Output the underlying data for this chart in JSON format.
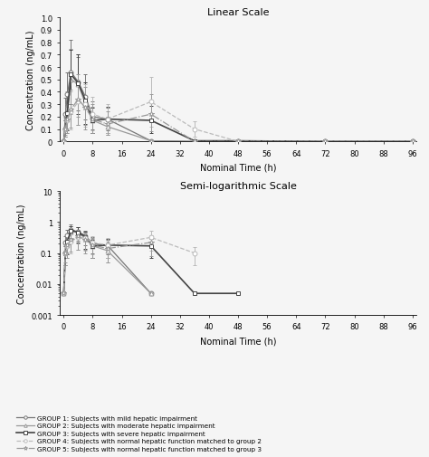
{
  "title_top": "Linear Scale",
  "title_bottom": "Semi-logarithmic Scale",
  "xlabel": "Nominal Time (h)",
  "ylabel": "Concentration (ng/mL)",
  "time_points": [
    0,
    0.5,
    1,
    2,
    4,
    6,
    8,
    12,
    24,
    36,
    48,
    72,
    96
  ],
  "groups": {
    "G1": {
      "label": "GROUP 1: Subjects with mild hepatic impairment",
      "color": "#777777",
      "linestyle": "-",
      "marker": "o",
      "markersize": 3.5,
      "linewidth": 0.9,
      "mean": [
        0.005,
        0.22,
        0.38,
        0.56,
        0.48,
        0.36,
        0.2,
        0.18,
        0.005,
        0.0,
        0.0,
        0.0,
        0.0
      ],
      "sd_lo": [
        0.005,
        0.12,
        0.2,
        0.3,
        0.25,
        0.18,
        0.1,
        0.09,
        0.005,
        0.0,
        0.0,
        0.0,
        0.0
      ],
      "sd_hi": [
        0.005,
        0.35,
        0.56,
        0.82,
        0.68,
        0.54,
        0.32,
        0.27,
        0.005,
        0.0,
        0.0,
        0.0,
        0.0
      ]
    },
    "G2": {
      "label": "GROUP 2: Subjects with moderate hepatic impairment",
      "color": "#999999",
      "linestyle": "-",
      "marker": "^",
      "markersize": 3.5,
      "linewidth": 0.9,
      "mean": [
        0.005,
        0.11,
        0.24,
        0.5,
        0.46,
        0.3,
        0.17,
        0.12,
        0.005,
        0.0,
        0.0,
        0.0,
        0.0
      ],
      "sd_lo": [
        0.005,
        0.05,
        0.1,
        0.22,
        0.2,
        0.13,
        0.07,
        0.05,
        0.005,
        0.0,
        0.0,
        0.0,
        0.0
      ],
      "sd_hi": [
        0.005,
        0.2,
        0.4,
        0.75,
        0.7,
        0.48,
        0.28,
        0.2,
        0.005,
        0.0,
        0.0,
        0.0,
        0.0
      ]
    },
    "G3": {
      "label": "GROUP 3: Subjects with severe hepatic impairment",
      "color": "#444444",
      "linestyle": "-",
      "marker": "s",
      "markersize": 3.5,
      "linewidth": 1.2,
      "mean": [
        0.005,
        0.1,
        0.23,
        0.54,
        0.47,
        0.33,
        0.17,
        0.18,
        0.17,
        0.005,
        0.005,
        0.0,
        0.0
      ],
      "sd_lo": [
        0.005,
        0.04,
        0.09,
        0.24,
        0.22,
        0.14,
        0.07,
        0.07,
        0.07,
        0.005,
        0.005,
        0.0,
        0.0
      ],
      "sd_hi": [
        0.005,
        0.17,
        0.38,
        0.74,
        0.7,
        0.48,
        0.27,
        0.28,
        0.29,
        0.005,
        0.005,
        0.0,
        0.0
      ]
    },
    "G4": {
      "label": "GROUP 4: Subjects with normal hepatic function matched to group 2",
      "color": "#bbbbbb",
      "linestyle": "--",
      "marker": "o",
      "markersize": 3.5,
      "linewidth": 0.9,
      "mean": [
        0.005,
        0.1,
        0.17,
        0.24,
        0.32,
        0.3,
        0.22,
        0.18,
        0.32,
        0.1,
        0.0,
        0.0,
        0.0
      ],
      "sd_lo": [
        0.005,
        0.04,
        0.07,
        0.1,
        0.13,
        0.12,
        0.09,
        0.07,
        0.12,
        0.04,
        0.0,
        0.0,
        0.0
      ],
      "sd_hi": [
        0.005,
        0.18,
        0.28,
        0.4,
        0.5,
        0.46,
        0.36,
        0.3,
        0.52,
        0.16,
        0.0,
        0.0,
        0.0
      ]
    },
    "G5": {
      "label": "GROUP 5: Subjects with normal hepatic function matched to group 3",
      "color": "#999999",
      "linestyle": "-.",
      "marker": "*",
      "markersize": 4,
      "linewidth": 0.9,
      "mean": [
        0.005,
        0.1,
        0.18,
        0.26,
        0.34,
        0.27,
        0.18,
        0.14,
        0.22,
        0.0,
        0.0,
        0.0,
        0.0
      ],
      "sd_lo": [
        0.005,
        0.04,
        0.07,
        0.11,
        0.13,
        0.1,
        0.07,
        0.05,
        0.08,
        0.0,
        0.0,
        0.0,
        0.0
      ],
      "sd_hi": [
        0.005,
        0.19,
        0.3,
        0.42,
        0.54,
        0.44,
        0.3,
        0.24,
        0.38,
        0.0,
        0.0,
        0.0,
        0.0
      ]
    }
  },
  "xticks": [
    0,
    8,
    16,
    24,
    32,
    40,
    48,
    56,
    64,
    72,
    80,
    88,
    96
  ],
  "ylim_linear": [
    0,
    1.0
  ],
  "yticks_linear": [
    0,
    0.1,
    0.2,
    0.3,
    0.4,
    0.5,
    0.6,
    0.7,
    0.8,
    0.9,
    1.0
  ],
  "ylim_log": [
    0.001,
    10
  ],
  "yticks_log": [
    0.001,
    0.01,
    0.1,
    1,
    10
  ],
  "background_color": "#f5f5f5"
}
